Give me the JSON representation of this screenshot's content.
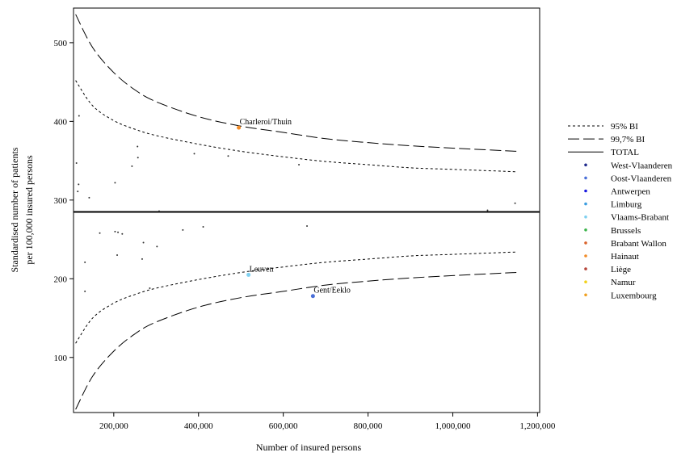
{
  "chart_data": {
    "type": "scatter",
    "title": "",
    "xlabel": "Number of insured persons",
    "ylabel_lines": [
      "Standardised number of patients",
      "per 100,000 insured persons"
    ],
    "xlim": [
      105000,
      1205000
    ],
    "ylim": [
      30,
      544
    ],
    "x_ticks": [
      200000,
      400000,
      600000,
      800000,
      1000000,
      1200000
    ],
    "x_tick_labels": [
      "200,000",
      "400,000",
      "600,000",
      "800,000",
      "1,000,000",
      "1,200,000"
    ],
    "y_ticks": [
      100,
      200,
      300,
      400,
      500
    ],
    "y_tick_labels": [
      "100",
      "200",
      "300",
      "400",
      "500"
    ],
    "grid": false,
    "legend_position": "right",
    "total": 285,
    "legend": [
      {
        "label": "95% BI",
        "kind": "line",
        "dash": "3,3"
      },
      {
        "label": "99,7% BI",
        "kind": "line",
        "dash": "14,5"
      },
      {
        "label": "TOTAL",
        "kind": "line",
        "dash": ""
      },
      {
        "label": "West-Vlaanderen",
        "kind": "dot",
        "color": "#1f2a8c"
      },
      {
        "label": "Oost-Vlaanderen",
        "kind": "dot",
        "color": "#4a6fd8"
      },
      {
        "label": "Antwerpen",
        "kind": "dot",
        "color": "#1a1ae0"
      },
      {
        "label": "Limburg",
        "kind": "dot",
        "color": "#3b9de0"
      },
      {
        "label": "Vlaams-Brabant",
        "kind": "dot",
        "color": "#7fd0f0"
      },
      {
        "label": "Brussels",
        "kind": "dot",
        "color": "#3cb44b"
      },
      {
        "label": "Brabant Wallon",
        "kind": "dot",
        "color": "#d9622b"
      },
      {
        "label": "Hainaut",
        "kind": "dot",
        "color": "#f28c28"
      },
      {
        "label": "Liège",
        "kind": "dot",
        "color": "#b5453a"
      },
      {
        "label": "Namur",
        "kind": "dot",
        "color": "#f2d21b"
      },
      {
        "label": "Luxembourg",
        "kind": "dot",
        "color": "#f0a020"
      }
    ],
    "annotations": [
      {
        "text": "Charleroi/Thuin",
        "x": 495000,
        "y": 392,
        "color": "#f28c28"
      },
      {
        "text": "Leuven",
        "x": 518000,
        "y": 205,
        "color": "#7fd0f0"
      },
      {
        "text": "Gent/Eeklo",
        "x": 670000,
        "y": 178,
        "color": "#4a6fd8"
      }
    ],
    "points": [
      {
        "x": 118000,
        "y": 407
      },
      {
        "x": 112000,
        "y": 347
      },
      {
        "x": 117000,
        "y": 320
      },
      {
        "x": 115000,
        "y": 311
      },
      {
        "x": 142000,
        "y": 303
      },
      {
        "x": 203000,
        "y": 322
      },
      {
        "x": 243000,
        "y": 343
      },
      {
        "x": 257000,
        "y": 354
      },
      {
        "x": 256000,
        "y": 368
      },
      {
        "x": 390000,
        "y": 359
      },
      {
        "x": 470000,
        "y": 356
      },
      {
        "x": 637000,
        "y": 345
      },
      {
        "x": 307000,
        "y": 286
      },
      {
        "x": 1082000,
        "y": 287
      },
      {
        "x": 1147000,
        "y": 296
      },
      {
        "x": 167000,
        "y": 258
      },
      {
        "x": 203000,
        "y": 260
      },
      {
        "x": 210000,
        "y": 259
      },
      {
        "x": 220000,
        "y": 257
      },
      {
        "x": 363000,
        "y": 262
      },
      {
        "x": 411000,
        "y": 266
      },
      {
        "x": 656000,
        "y": 267
      },
      {
        "x": 270000,
        "y": 246
      },
      {
        "x": 302000,
        "y": 241
      },
      {
        "x": 208000,
        "y": 230
      },
      {
        "x": 267000,
        "y": 225
      },
      {
        "x": 132000,
        "y": 221
      },
      {
        "x": 132000,
        "y": 184
      },
      {
        "x": 285000,
        "y": 188
      },
      {
        "x": 495000,
        "y": 392,
        "color": "#f28c28",
        "r": 2.5
      },
      {
        "x": 518000,
        "y": 205,
        "color": "#7fd0f0",
        "r": 2.5
      },
      {
        "x": 670000,
        "y": 178,
        "color": "#4a6fd8",
        "r": 2.5
      }
    ],
    "bands": {
      "ci95_upper": [
        [
          110000,
          452
        ],
        [
          150000,
          420
        ],
        [
          200000,
          401
        ],
        [
          250000,
          390
        ],
        [
          300000,
          382
        ],
        [
          400000,
          371
        ],
        [
          500000,
          362
        ],
        [
          600000,
          355
        ],
        [
          700000,
          349
        ],
        [
          800000,
          345
        ],
        [
          900000,
          341
        ],
        [
          1000000,
          339
        ],
        [
          1150000,
          336
        ]
      ],
      "ci95_lower": [
        [
          110000,
          118
        ],
        [
          150000,
          150
        ],
        [
          200000,
          169
        ],
        [
          250000,
          180
        ],
        [
          300000,
          188
        ],
        [
          400000,
          199
        ],
        [
          500000,
          208
        ],
        [
          600000,
          215
        ],
        [
          700000,
          221
        ],
        [
          800000,
          225
        ],
        [
          900000,
          229
        ],
        [
          1000000,
          231
        ],
        [
          1150000,
          234
        ]
      ],
      "ci997_upper": [
        [
          110000,
          536
        ],
        [
          150000,
          494
        ],
        [
          200000,
          462
        ],
        [
          250000,
          440
        ],
        [
          300000,
          425
        ],
        [
          400000,
          406
        ],
        [
          500000,
          394
        ],
        [
          600000,
          386
        ],
        [
          700000,
          378
        ],
        [
          800000,
          373
        ],
        [
          900000,
          369
        ],
        [
          1000000,
          366
        ],
        [
          1150000,
          362
        ]
      ],
      "ci997_lower": [
        [
          110000,
          34
        ],
        [
          150000,
          76
        ],
        [
          200000,
          108
        ],
        [
          250000,
          130
        ],
        [
          300000,
          145
        ],
        [
          400000,
          164
        ],
        [
          500000,
          176
        ],
        [
          600000,
          184
        ],
        [
          700000,
          192
        ],
        [
          800000,
          197
        ],
        [
          900000,
          201
        ],
        [
          1000000,
          204
        ],
        [
          1150000,
          208
        ]
      ]
    }
  }
}
